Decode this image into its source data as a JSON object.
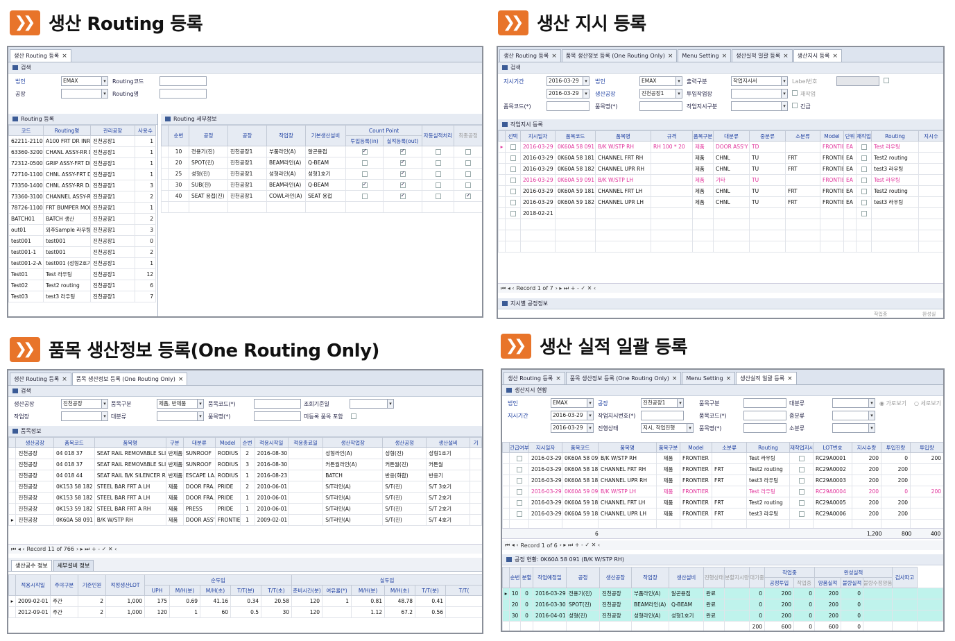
{
  "s1": {
    "title": "생산 Routing 등록",
    "tab": "생산 Routing 등록",
    "search": "검색",
    "lbl_corp": "법인",
    "corp": "EMAX",
    "lbl_rcode": "Routing코드",
    "lbl_plant": "공장",
    "lbl_rname": "Routing명",
    "list_title": "Routing 등록",
    "detail_title": "Routing 세부정보",
    "list_cols": [
      "코드",
      "Routing명",
      "관리공장",
      "사용수"
    ],
    "list_rows": [
      [
        "62211-21100...",
        "A100 FRT DR INR L...",
        "진천공장1",
        "1"
      ],
      [
        "63360-32000...",
        "CHANL ASSY-RR D...",
        "진천공장1",
        "1"
      ],
      [
        "72312-05002...",
        "GRIP ASSY-FRT DR...",
        "진천공장1",
        "1"
      ],
      [
        "72710-11002...",
        "CHNL ASSY-FRT D...",
        "진천공장1",
        "1"
      ],
      [
        "73350-14000...",
        "CHNL ASSY-RR D...",
        "진천공장1",
        "3"
      ],
      [
        "73360-31000...",
        "CHANNEL ASSY-R...",
        "진천공장1",
        "2"
      ],
      [
        "78726-11000...",
        "FRT BUMPER MOL...",
        "진천공장1",
        "1"
      ],
      [
        "BATCH01",
        "BATCH 생산",
        "진천공장1",
        "2"
      ],
      [
        "out01",
        "외주Sample 라우팅",
        "진천공장1",
        "3"
      ],
      [
        "test001",
        "test001",
        "진천공장1",
        "0"
      ],
      [
        "test001-1",
        "test001",
        "진천공장1",
        "2"
      ],
      [
        "test001-2-A",
        "test001 (성형2호기)",
        "진천공장1",
        "1"
      ],
      [
        "Test01",
        "Test 라우팅",
        "진천공장1",
        "12"
      ],
      [
        "Test02",
        "Test2 routing",
        "진천공장1",
        "6"
      ],
      [
        "Test03",
        "test3 라우팅",
        "진천공장1",
        "7"
      ]
    ],
    "detail_cols": [
      "순번",
      "공정",
      "공장",
      "작업장",
      "기본생산설비",
      "Count Point",
      "투입등록(in)",
      "실적등록(out)",
      "자동실적처리",
      "최종공정"
    ],
    "detail_rows": [
      [
        "10",
        "전용기(진)",
        "진천공장1",
        "부품라인(A)",
        "알곤용접",
        true,
        true
      ],
      [
        "20",
        "SPOT(진)",
        "진천공장1",
        "BEAM라인(A)",
        "Q-BEAM",
        false,
        true
      ],
      [
        "25",
        "성형(진)",
        "진천공장1",
        "성형라인(A)",
        "성형1호기",
        false,
        true
      ],
      [
        "30",
        "SUB(진)",
        "진천공장1",
        "BEAM라인(A)",
        "Q-BEAM",
        true,
        true
      ],
      [
        "40",
        "SEAT 용접(진)",
        "진천공장1",
        "COWL라인(A)",
        "SEAT 용접",
        false,
        true
      ]
    ]
  },
  "s2": {
    "title": "생산 지시 등록",
    "tabs": [
      "생산 Routing 등록",
      "품목 생산정보 등록 (One Routing Only)",
      "Menu Setting",
      "생산실적 일괄 등록",
      "생산지시 등록"
    ],
    "search": "검색",
    "lbl_period": "지시기간",
    "date1": "2016-03-29",
    "date2": "2016-03-29",
    "lbl_corp": "법인",
    "corp": "EMAX",
    "lbl_factory": "생산공장",
    "factory": "진천공장1",
    "lbl_out": "출력구분",
    "out": "작업지시서",
    "lbl_label": "Label번호",
    "lbl_inwork": "투입작업장",
    "lbl_item": "품목코드(*)",
    "lbl_itemname": "품목명(*)",
    "lbl_ordertype": "작업지시구분",
    "chk_rework": "재작업",
    "chk_urgent": "긴급",
    "grid_title": "작업지시 등록",
    "cols": [
      "선택",
      "지시일자",
      "품목코드",
      "품목명",
      "규격",
      "품목구분",
      "대분류",
      "중분류",
      "소분류",
      "Model",
      "단위",
      "재작업",
      "Routing",
      "지시수"
    ],
    "rows": [
      [
        "2016-03-29",
        "0K60A 58 091",
        "B/K W/STP RH",
        "RH 100 * 20",
        "제품",
        "DOOR ASS'Y",
        "TD",
        "",
        "FRONTIER",
        "EA",
        "Test 라우팅"
      ],
      [
        "2016-03-29",
        "0K60A 58 181",
        "CHANNEL FRT RH",
        "",
        "제품",
        "CHNL",
        "TU",
        "FRT",
        "FRONTIER",
        "EA",
        "Test2 routing"
      ],
      [
        "2016-03-29",
        "0K60A 58 182",
        "CHANNEL UPR RH",
        "",
        "제품",
        "CHNL",
        "TU",
        "FRT",
        "FRONTIER",
        "EA",
        "test3 라우팅"
      ],
      [
        "2016-03-29",
        "0K60A 59 091",
        "B/K W/STP LH",
        "",
        "제품",
        "기타",
        "TU",
        "",
        "FRONTIER",
        "EA",
        "Test 라우팅"
      ],
      [
        "2016-03-29",
        "0K60A 59 181",
        "CHANNEL FRT LH",
        "",
        "제품",
        "CHNL",
        "TU",
        "FRT",
        "FRONTIER",
        "EA",
        "Test2 routing"
      ],
      [
        "2016-03-29",
        "0K60A 59 182",
        "CHANNEL UPR LH",
        "",
        "제품",
        "CHNL",
        "TU",
        "FRT",
        "FRONTIER",
        "EA",
        "test3 라우팅"
      ],
      [
        "2018-02-21",
        "",
        "",
        "",
        "",
        "",
        "",
        "",
        "",
        "",
        ""
      ]
    ],
    "record": "Record 1 of 7",
    "bottom": "지시별 공정정보",
    "foot1": "작업중",
    "foot2": "완성실"
  },
  "s3": {
    "title": "품목 생산정보 등록(One Routing Only)",
    "tabs": [
      "생산 Routing 등록",
      "품목 생산정보 등록 (One Routing Only)"
    ],
    "search": "검색",
    "lbl_factory": "생산공장",
    "factory": "진천공장",
    "lbl_type": "품목구분",
    "type": "제품, 반제품",
    "lbl_item": "품목코드(*)",
    "lbl_basis": "조회기준일",
    "lbl_work": "작업장",
    "lbl_cat": "대분류",
    "lbl_itemname": "품목명(*)",
    "lbl_unreg": "미등록 품목 포함",
    "grid_title": "품목정보",
    "cols": [
      "생산공장",
      "품목코드",
      "품목명",
      "구분",
      "대분류",
      "Model",
      "순번",
      "적용시작일",
      "적용종료일",
      "생산작업장",
      "생산공정",
      "생산설비",
      "기"
    ],
    "rows": [
      [
        "진천공장",
        "04 018 37",
        "SEAT RAIL REMOVABLE SLIDE",
        "반제품",
        "SUNROOF",
        "RODIUS",
        "2",
        "2016-08-30",
        "",
        "성형라인(A)",
        "성형(진)",
        "성형1호기"
      ],
      [
        "진천공장",
        "04 018 37",
        "SEAT RAIL REMOVABLE SLIDE",
        "반제품",
        "SUNROOF",
        "RODIUS",
        "3",
        "2016-08-30",
        "",
        "커튼월라인(A)",
        "커튼월(진)",
        "커튼월"
      ],
      [
        "진천공장",
        "04 018 44",
        "SEAT RAIL B/K SILENCER RR",
        "반제품",
        "ESCAPE LA...",
        "RODIUS",
        "1",
        "2016-08-23",
        "",
        "BATCH",
        "반응(화합)",
        "반응기"
      ],
      [
        "진천공장",
        "0K153 58 182",
        "STEEL BAR FRT A LH",
        "제품",
        "DOOR FRA...",
        "PRIDE",
        "2",
        "2010-06-01",
        "",
        "S/T라인(A)",
        "S/T(진)",
        "S/T 3호기"
      ],
      [
        "진천공장",
        "0K153 58 182",
        "STEEL BAR FRT A LH",
        "제품",
        "DOOR FRA...",
        "PRIDE",
        "1",
        "2010-06-01",
        "",
        "S/T라인(A)",
        "S/T(진)",
        "S/T 2호기"
      ],
      [
        "진천공장",
        "0K153 59 182",
        "STEEL BAR FRT A RH",
        "제품",
        "PRESS",
        "PRIDE",
        "1",
        "2010-06-01",
        "",
        "S/T라인(A)",
        "S/T(진)",
        "S/T 2호기"
      ],
      [
        "진천공장",
        "0K60A 58 091",
        "B/K W/STP RH",
        "제품",
        "DOOR ASS'Y",
        "FRONTIER",
        "1",
        "2009-02-01",
        "",
        "S/T라인(A)",
        "S/T(진)",
        "S/T 4호기"
      ]
    ],
    "record": "Record 11 of 766",
    "subtabs": [
      "생산공수 정보",
      "세부설비 정보"
    ],
    "low_cols": [
      "적용시작일",
      "주야구분",
      "기준인원",
      "적정생산LOT",
      "UPH",
      "M/H(분)",
      "M/H(초)",
      "T/T(분)",
      "T/T(초)",
      "준비시간(분)",
      "여유율(*)",
      "M/H(분)",
      "M/H(초)",
      "T/T(분)",
      "T/T("
    ],
    "grp_in": "순투입",
    "grp_real": "실투입",
    "low_rows": [
      [
        "2009-02-01",
        "주간",
        "2",
        "1,000",
        "175",
        "0.69",
        "41.16",
        "0.34",
        "20.58",
        "120",
        "1",
        "0.81",
        "48.78",
        "0.41"
      ],
      [
        "2012-09-01",
        "주간",
        "2",
        "1,000",
        "120",
        "1",
        "60",
        "0.5",
        "30",
        "120",
        "",
        "1.12",
        "67.2",
        "0.56"
      ]
    ]
  },
  "s4": {
    "title": "생산 실적 일괄 등록",
    "tabs": [
      "생산 Routing 등록",
      "품목 생산정보 등록 (One Routing Only)",
      "Menu Setting",
      "생산실적 일괄 등록"
    ],
    "status": "생산지시 현황",
    "lbl_corp": "법인",
    "corp": "EMAX",
    "lbl_plant": "공장",
    "plant": "진천공장1",
    "lbl_itype": "품목구분",
    "lbl_cat": "대분류",
    "radio1": "가로보기",
    "radio2": "세로보기",
    "lbl_period": "지시기간",
    "date1": "2016-03-29",
    "date2": "2016-03-29",
    "lbl_ordno": "작업지시번호(*)",
    "lbl_item": "품목코드(*)",
    "lbl_mid": "중분류",
    "lbl_state": "진행상태",
    "state": "지시, 작업진행",
    "lbl_itemname": "품목명(*)",
    "lbl_small": "소분류",
    "cols": [
      "긴급여부",
      "지시일자",
      "품목코드",
      "품목명",
      "품목구분",
      "Model",
      "소분류",
      "Routing",
      "재작업지시",
      "LOT번호",
      "지시수량",
      "투입진량",
      "투입량"
    ],
    "rows": [
      [
        "2016-03-29",
        "0K60A 58 091",
        "B/K W/STP RH",
        "제품",
        "FRONTIER",
        "",
        "Test 라우팅",
        "RC29A0001",
        "200",
        "0",
        "200"
      ],
      [
        "2016-03-29",
        "0K60A 58 181",
        "CHANNEL FRT RH",
        "제품",
        "FRONTIER",
        "FRT",
        "Test2 routing",
        "RC29A0002",
        "200",
        "200",
        ""
      ],
      [
        "2016-03-29",
        "0K60A 58 182",
        "CHANNEL UPR RH",
        "제품",
        "FRONTIER",
        "FRT",
        "test3 라우팅",
        "RC29A0003",
        "200",
        "200",
        ""
      ],
      [
        "2016-03-29",
        "0K60A 59 091",
        "B/K W/STP LH",
        "제품",
        "FRONTIER",
        "",
        "Test 라우팅",
        "RC29A0004",
        "200",
        "0",
        "200"
      ],
      [
        "2016-03-29",
        "0K60A 59 181",
        "CHANNEL FRT LH",
        "제품",
        "FRONTIER",
        "FRT",
        "Test2 routing",
        "RC29A0005",
        "200",
        "200",
        ""
      ],
      [
        "2016-03-29",
        "0K60A 59 182",
        "CHANNEL UPR LH",
        "제품",
        "FRONTIER",
        "FRT",
        "test3 라우팅",
        "RC29A0006",
        "200",
        "200",
        ""
      ]
    ],
    "sum_count": "6",
    "sum1": "1,200",
    "sum2": "800",
    "sum3": "400",
    "record": "Record 1 of 6",
    "proc_title": "공정 현황: 0K60A 58 091 (B/K W/STP RH)",
    "proc_cols": [
      "순번",
      "분할",
      "작업예정일",
      "공정",
      "생산공장",
      "작업장",
      "생산설비",
      "진행상태",
      "분할지시량",
      "대기중",
      "공정투입",
      "작업중",
      "양품실적",
      "불량실적",
      "불량수정양품",
      "검사파고"
    ],
    "grp_working": "작업중",
    "grp_done": "완성실적",
    "proc_rows": [
      [
        "10",
        "0",
        "2016-03-29",
        "전용기(진)",
        "진천공장",
        "부품라인(A)",
        "알곤용접",
        "완료",
        "",
        "0",
        "200",
        "0",
        "200",
        "0"
      ],
      [
        "20",
        "0",
        "2016-03-30",
        "SPOT(진)",
        "진천공장",
        "BEAM라인(A)",
        "Q-BEAM",
        "완료",
        "",
        "0",
        "200",
        "0",
        "200",
        "0"
      ],
      [
        "30",
        "0",
        "2016-04-01",
        "성형(진)",
        "진천공장",
        "성형라인(A)",
        "성형1호기",
        "완료",
        "",
        "0",
        "200",
        "0",
        "200",
        "0"
      ]
    ],
    "proc_sum": [
      "200",
      "600",
      "0",
      "600",
      "0"
    ]
  }
}
